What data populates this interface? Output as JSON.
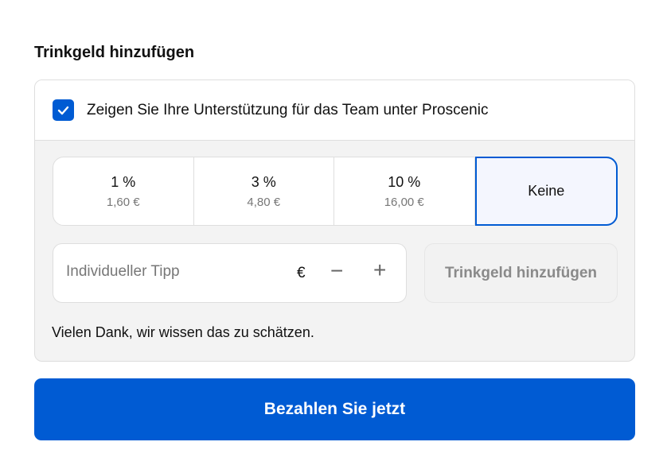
{
  "title": "Trinkgeld hinzufügen",
  "support": {
    "checked": true,
    "label": "Zeigen Sie Ihre Unterstützung für das Team unter Proscenic"
  },
  "options": [
    {
      "percent": "1 %",
      "amount": "1,60 €"
    },
    {
      "percent": "3 %",
      "amount": "4,80 €"
    },
    {
      "percent": "10 %",
      "amount": "16,00 €"
    },
    {
      "label": "Keine",
      "selected": true
    }
  ],
  "custom": {
    "placeholder": "Individueller Tipp",
    "currency": "€",
    "minus": "−",
    "plus": "+",
    "add_label": "Trinkgeld hinzufügen"
  },
  "thanks": "Vielen Dank, wir wissen das zu schätzen.",
  "pay_label": "Bezahlen Sie jetzt",
  "colors": {
    "accent": "#005bd3"
  }
}
